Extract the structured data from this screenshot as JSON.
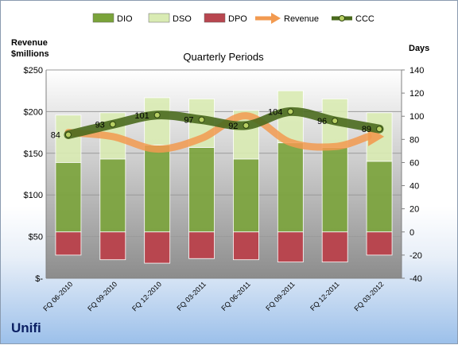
{
  "company": "Unifi",
  "chart_data": {
    "type": "bar",
    "title": "Quarterly Periods",
    "left_axis_title": [
      "Revenue",
      "$millions"
    ],
    "right_axis_title": "Days",
    "categories": [
      "FQ 06-2010",
      "FQ 09-2010",
      "FQ 12-2010",
      "FQ 03-2011",
      "FQ 06-2011",
      "FQ 09-2011",
      "FQ 12-2011",
      "FQ 03-2012"
    ],
    "left_axis": {
      "min": 0,
      "max": 250,
      "step": 50,
      "tick_labels": [
        "$-",
        "$50",
        "$100",
        "$150",
        "$200",
        "$250"
      ]
    },
    "right_axis": {
      "min": -40,
      "max": 140,
      "step": 20,
      "tick_labels": [
        "-40",
        "-20",
        "0",
        "20",
        "40",
        "60",
        "80",
        "100",
        "120",
        "140"
      ]
    },
    "legend": {
      "position": "top",
      "entries": [
        {
          "name": "DIO",
          "kind": "bar"
        },
        {
          "name": "DSO",
          "kind": "bar"
        },
        {
          "name": "DPO",
          "kind": "bar"
        },
        {
          "name": "Revenue",
          "kind": "arrow"
        },
        {
          "name": "CCC",
          "kind": "line"
        }
      ]
    },
    "series": [
      {
        "name": "DIO",
        "axis": "right",
        "values": [
          60,
          63,
          75,
          73,
          63,
          77,
          73,
          61
        ]
      },
      {
        "name": "DSO",
        "axis": "right",
        "values": [
          41,
          40,
          41,
          42,
          42,
          45,
          42,
          42
        ]
      },
      {
        "name": "DPO",
        "axis": "right",
        "values": [
          -20,
          -24,
          -27,
          -23,
          -24,
          -26,
          -26,
          -20
        ]
      },
      {
        "name": "Revenue",
        "axis": "left",
        "values": [
          175,
          170,
          155,
          168,
          195,
          163,
          158,
          170
        ]
      },
      {
        "name": "CCC",
        "axis": "right",
        "values": [
          84,
          93,
          101,
          97,
          92,
          104,
          96,
          89
        ]
      }
    ],
    "colors": {
      "DIO": "#7aa33a",
      "DSO": "#d9ebb3",
      "DPO": "#b8464f",
      "Revenue": "#f29a50",
      "CCC": "#4a6a1e",
      "plot_bg_top": "#ffffff",
      "plot_bg_bottom": "#8c8c8c"
    }
  }
}
